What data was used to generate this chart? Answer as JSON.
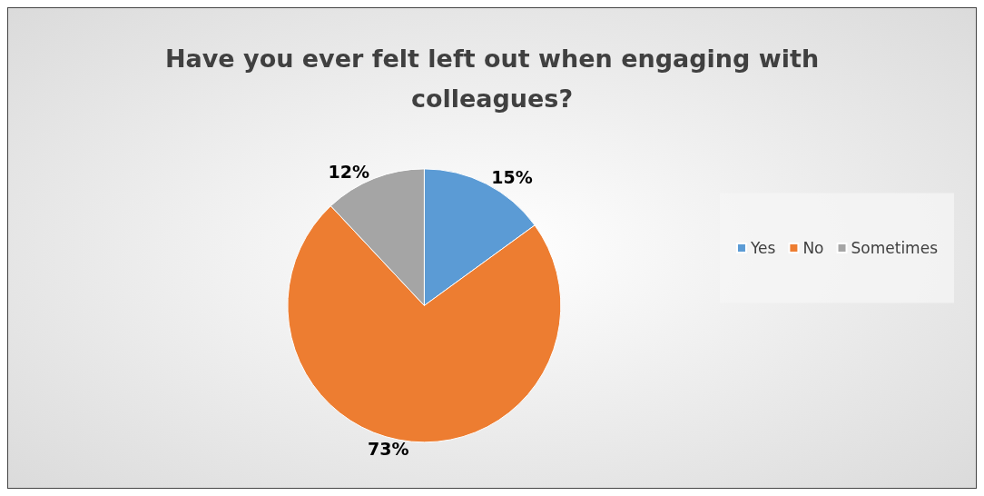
{
  "chart_data": {
    "type": "pie",
    "title": "Have you ever felt left out when engaging with\ncolleagues?",
    "categories": [
      "Yes",
      "No",
      "Sometimes"
    ],
    "values": [
      15,
      73,
      12
    ],
    "colors": [
      "#5b9bd5",
      "#ed7d31",
      "#a5a5a5"
    ],
    "value_labels": [
      "15%",
      "73%",
      "12%"
    ],
    "legend": "right"
  }
}
